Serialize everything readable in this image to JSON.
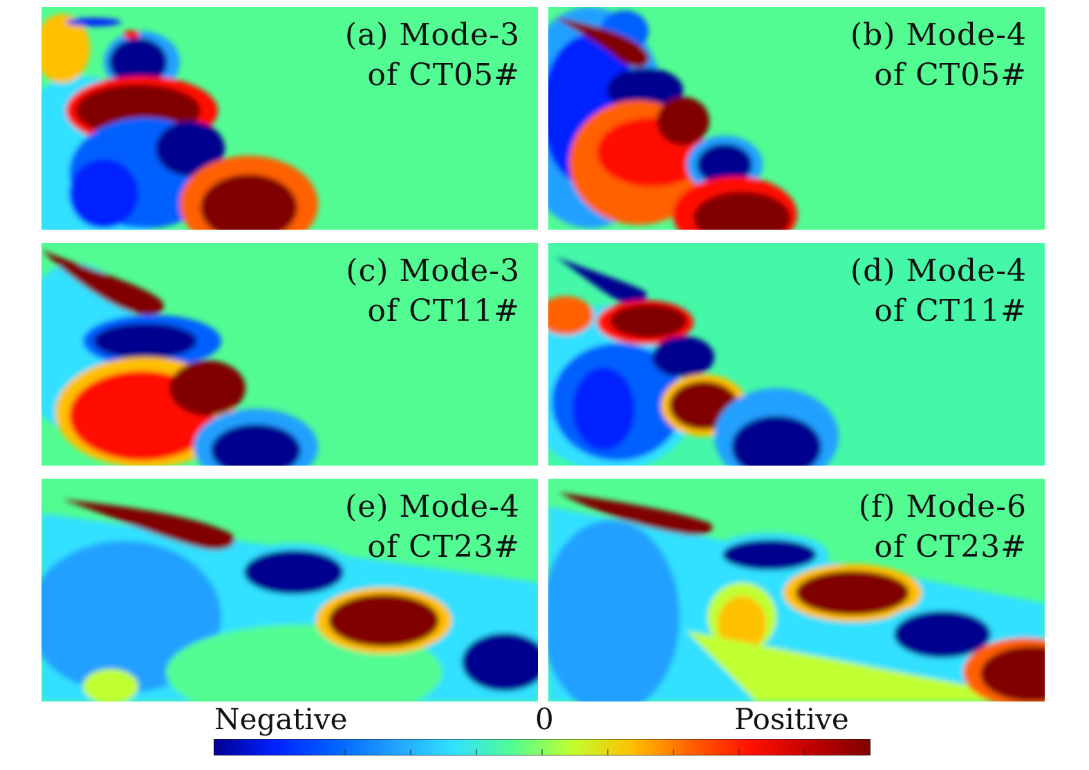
{
  "panels": [
    {
      "id": "a",
      "title": "(a) Mode-3",
      "subtitle": "of CT05#"
    },
    {
      "id": "b",
      "title": "(b) Mode-4",
      "subtitle": "of CT05#"
    },
    {
      "id": "c",
      "title": "(c) Mode-3",
      "subtitle": "of CT11#"
    },
    {
      "id": "d",
      "title": "(d) Mode-4",
      "subtitle": "of CT11#"
    },
    {
      "id": "e",
      "title": "(e) Mode-4",
      "subtitle": "of CT23#"
    },
    {
      "id": "f",
      "title": "(f) Mode-6",
      "subtitle": "of CT23#"
    }
  ],
  "colorbar": {
    "negative_label": "Negative",
    "zero_label": "0",
    "positive_label": "Positive",
    "colors": [
      "#00008f",
      "#0020ff",
      "#0060ff",
      "#20a0ff",
      "#30e0ff",
      "#52fc93",
      "#c0ff30",
      "#ffc000",
      "#ff6000",
      "#ff1000",
      "#c00000",
      "#800000"
    ]
  },
  "palette": {
    "background": "#52fc93",
    "positive": "#800000",
    "negative": "#00008f"
  }
}
